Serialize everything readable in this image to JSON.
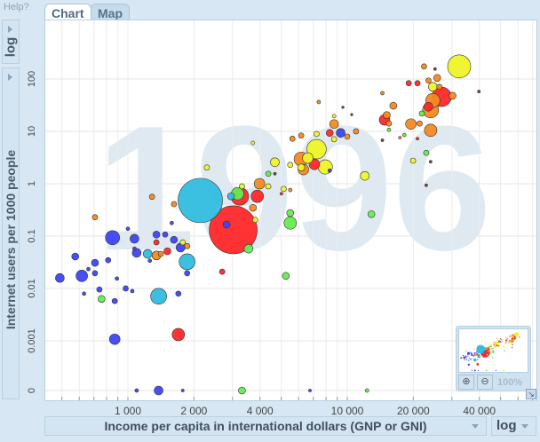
{
  "help_label": "Help?",
  "tabs": [
    {
      "label": "Chart",
      "active": true
    },
    {
      "label": "Map",
      "active": false
    }
  ],
  "y_scale_button": "log",
  "x_scale_select": "log",
  "zoom": {
    "level": "100%"
  },
  "colors": {
    "blue": "#3c46f5",
    "cyan": "#30bde0",
    "red": "#ff2828",
    "orange": "#f68a20",
    "yellow": "#eef526",
    "green": "#64ec50",
    "dark": "#7a3a3a"
  },
  "chart_data": {
    "type": "scatter",
    "title": "",
    "year": "1996",
    "xlabel": "Income per capita in international dollars (GNP or GNI)",
    "ylabel": "Internet users per 1000 people",
    "x_scale": "log",
    "y_scale": "log",
    "xlim": [
      500,
      60000
    ],
    "x_ticks": [
      {
        "v": 1000,
        "label": "1 000"
      },
      {
        "v": 2000,
        "label": "2 000"
      },
      {
        "v": 4000,
        "label": "4 000"
      },
      {
        "v": 10000,
        "label": "10 000"
      },
      {
        "v": 20000,
        "label": "20 000"
      },
      {
        "v": 40000,
        "label": "40 000"
      }
    ],
    "y_ticks": [
      {
        "v": 100,
        "label": "100"
      },
      {
        "v": 10,
        "label": "10"
      },
      {
        "v": 1,
        "label": "1"
      },
      {
        "v": 0.1,
        "label": "0.1"
      },
      {
        "v": 0.01,
        "label": "0.01"
      },
      {
        "v": 0.001,
        "label": "0.001"
      },
      {
        "v": 0,
        "label": "0"
      }
    ],
    "point_fields": [
      "log10_income",
      "log10_internet_users (null = 0)",
      "population_millions",
      "color"
    ],
    "points": [
      [
        2.69,
        -1.8,
        30,
        "blue"
      ],
      [
        2.79,
        -1.76,
        51,
        "blue"
      ],
      [
        2.76,
        -1.39,
        19,
        "blue"
      ],
      [
        2.85,
        -1.51,
        19,
        "blue"
      ],
      [
        2.85,
        -1.71,
        11,
        "blue"
      ],
      [
        2.82,
        -1.63,
        5,
        "blue"
      ],
      [
        2.93,
        -1.03,
        77,
        "blue"
      ],
      [
        2.91,
        -1.46,
        11,
        "blue"
      ],
      [
        2.87,
        -2.02,
        11,
        "blue"
      ],
      [
        2.8,
        -2.1,
        5,
        "blue"
      ],
      [
        2.88,
        -2.2,
        19,
        "green"
      ],
      [
        2.94,
        -2.24,
        11,
        "blue"
      ],
      [
        2.95,
        -1.81,
        5,
        "blue"
      ],
      [
        2.99,
        -2.0,
        11,
        "blue"
      ],
      [
        3.02,
        -2.05,
        5,
        "blue"
      ],
      [
        3.03,
        -1.05,
        30,
        "blue"
      ],
      [
        3.0,
        -0.86,
        5,
        "blue"
      ],
      [
        3.04,
        -1.32,
        30,
        "blue"
      ],
      [
        3.03,
        -1.24,
        5,
        "blue"
      ],
      [
        3.09,
        -1.34,
        30,
        "cyan"
      ],
      [
        3.1,
        -1.47,
        5,
        "blue"
      ],
      [
        3.14,
        -2.15,
        97,
        "cyan"
      ],
      [
        3.13,
        -1.37,
        30,
        "orange"
      ],
      [
        3.15,
        -1.34,
        11,
        "orange"
      ],
      [
        3.13,
        -0.97,
        19,
        "blue"
      ],
      [
        3.17,
        -0.97,
        11,
        "blue"
      ],
      [
        3.13,
        -1.12,
        11,
        "red"
      ],
      [
        3.18,
        -1.29,
        19,
        "red"
      ],
      [
        3.21,
        -1.07,
        19,
        "blue"
      ],
      [
        3.25,
        -1.12,
        11,
        "yellow"
      ],
      [
        3.24,
        -1.22,
        30,
        "blue"
      ],
      [
        3.27,
        -1.49,
        97,
        "cyan"
      ],
      [
        3.27,
        -1.19,
        11,
        "orange"
      ],
      [
        3.27,
        -1.71,
        11,
        "blue"
      ],
      [
        3.23,
        -2.1,
        11,
        "blue"
      ],
      [
        3.23,
        -2.88,
        59,
        "red"
      ],
      [
        2.94,
        -2.97,
        43,
        "blue"
      ],
      [
        2.85,
        -0.64,
        11,
        "orange"
      ],
      [
        3.11,
        -0.25,
        11,
        "orange"
      ],
      [
        3.2,
        -0.75,
        5,
        "blue"
      ],
      [
        3.21,
        -0.39,
        11,
        "orange"
      ],
      [
        3.33,
        -0.32,
        750,
        "cyan"
      ],
      [
        3.48,
        -0.88,
        875,
        "red"
      ],
      [
        3.45,
        -0.78,
        19,
        "blue"
      ],
      [
        3.55,
        -1.24,
        30,
        "green"
      ],
      [
        3.43,
        -1.68,
        11,
        "red"
      ],
      [
        3.51,
        -0.24,
        120,
        "red"
      ],
      [
        3.5,
        -0.19,
        59,
        "green"
      ],
      [
        3.47,
        -0.24,
        19,
        "cyan"
      ],
      [
        3.6,
        0.0,
        43,
        "orange"
      ],
      [
        3.59,
        -0.24,
        59,
        "red"
      ],
      [
        3.36,
        0.31,
        11,
        "yellow"
      ],
      [
        3.57,
        -0.46,
        19,
        "orange"
      ],
      [
        3.58,
        -0.69,
        11,
        "yellow"
      ],
      [
        3.52,
        -0.05,
        11,
        "yellow"
      ],
      [
        3.04,
        null,
        5,
        "blue"
      ],
      [
        3.14,
        null,
        30,
        "blue"
      ],
      [
        3.25,
        null,
        3,
        "blue"
      ],
      [
        3.52,
        null,
        19,
        "green"
      ],
      [
        3.83,
        null,
        3,
        "blue"
      ],
      [
        4.09,
        null,
        5,
        "green"
      ],
      [
        4.51,
        2.24,
        203,
        "yellow"
      ],
      [
        4.35,
        2.24,
        11,
        "orange"
      ],
      [
        4.4,
        2.19,
        3,
        "dark"
      ],
      [
        4.41,
        2.02,
        19,
        "orange"
      ],
      [
        4.37,
        1.97,
        11,
        "orange"
      ],
      [
        4.28,
        1.92,
        11,
        "red"
      ],
      [
        4.32,
        1.92,
        11,
        "red"
      ],
      [
        4.39,
        1.85,
        30,
        "yellow"
      ],
      [
        4.42,
        1.85,
        11,
        "orange"
      ],
      [
        4.43,
        1.66,
        145,
        "red"
      ],
      [
        4.39,
        1.59,
        77,
        "orange"
      ],
      [
        4.37,
        1.47,
        30,
        "red"
      ],
      [
        4.38,
        1.41,
        97,
        "orange"
      ],
      [
        4.48,
        1.68,
        19,
        "orange"
      ],
      [
        4.6,
        1.76,
        3,
        "dark"
      ],
      [
        4.16,
        1.73,
        5,
        "orange"
      ],
      [
        4.21,
        1.49,
        19,
        "orange"
      ],
      [
        4.17,
        1.22,
        43,
        "red"
      ],
      [
        4.18,
        1.31,
        19,
        "orange"
      ],
      [
        4.19,
        1.15,
        11,
        "orange"
      ],
      [
        4.33,
        1.15,
        11,
        "orange"
      ],
      [
        4.34,
        1.34,
        11,
        "green"
      ],
      [
        4.29,
        1.14,
        43,
        "orange"
      ],
      [
        4.38,
        1.02,
        59,
        "orange"
      ],
      [
        4.19,
        1.03,
        5,
        "green"
      ],
      [
        4.26,
        0.93,
        5,
        "green"
      ],
      [
        4.16,
        0.83,
        3,
        "dark"
      ],
      [
        4.24,
        0.88,
        3,
        "orange"
      ],
      [
        4.32,
        0.86,
        3,
        "red"
      ],
      [
        4.36,
        0.59,
        11,
        "green"
      ],
      [
        4.3,
        0.44,
        11,
        "yellow"
      ],
      [
        4.38,
        0.42,
        3,
        "dark"
      ],
      [
        4.36,
        -0.03,
        3,
        "dark"
      ],
      [
        3.94,
        1.14,
        30,
        "orange"
      ],
      [
        3.97,
        0.97,
        30,
        "blue"
      ],
      [
        3.92,
        0.97,
        19,
        "red"
      ],
      [
        3.94,
        0.85,
        11,
        "yellow"
      ],
      [
        3.94,
        1.29,
        5,
        "yellow"
      ],
      [
        4.04,
        1.0,
        11,
        "orange"
      ],
      [
        4.0,
        0.9,
        11,
        "orange"
      ],
      [
        3.87,
        1.56,
        5,
        "orange"
      ],
      [
        3.98,
        1.46,
        2,
        "dark"
      ],
      [
        4.02,
        1.32,
        2,
        "dark"
      ],
      [
        3.75,
        0.86,
        11,
        "orange"
      ],
      [
        3.79,
        0.92,
        11,
        "orange"
      ],
      [
        3.86,
        0.95,
        11,
        "yellow"
      ],
      [
        3.86,
        0.66,
        145,
        "yellow"
      ],
      [
        3.79,
        0.47,
        77,
        "orange"
      ],
      [
        3.85,
        0.37,
        43,
        "red"
      ],
      [
        3.8,
        0.27,
        43,
        "orange"
      ],
      [
        3.82,
        0.49,
        43,
        "yellow"
      ],
      [
        3.79,
        0.31,
        19,
        "yellow"
      ],
      [
        3.9,
        0.32,
        77,
        "yellow"
      ],
      [
        3.92,
        0.25,
        5,
        "blue"
      ],
      [
        4.08,
        0.15,
        30,
        "yellow"
      ],
      [
        3.67,
        0.41,
        30,
        "yellow"
      ],
      [
        3.74,
        0.36,
        11,
        "yellow"
      ],
      [
        3.64,
        0.19,
        11,
        "green"
      ],
      [
        3.67,
        0.19,
        3,
        "dark"
      ],
      [
        3.64,
        -0.05,
        11,
        "yellow"
      ],
      [
        3.71,
        -0.1,
        11,
        "yellow"
      ],
      [
        3.74,
        -0.12,
        5,
        "orange"
      ],
      [
        3.7,
        -0.19,
        3,
        "red"
      ],
      [
        3.57,
        0.78,
        5,
        "yellow"
      ],
      [
        3.74,
        -0.56,
        19,
        "green"
      ],
      [
        3.74,
        -0.75,
        59,
        "green"
      ],
      [
        4.11,
        -0.58,
        19,
        "green"
      ],
      [
        3.72,
        -1.76,
        19,
        "green"
      ]
    ]
  }
}
